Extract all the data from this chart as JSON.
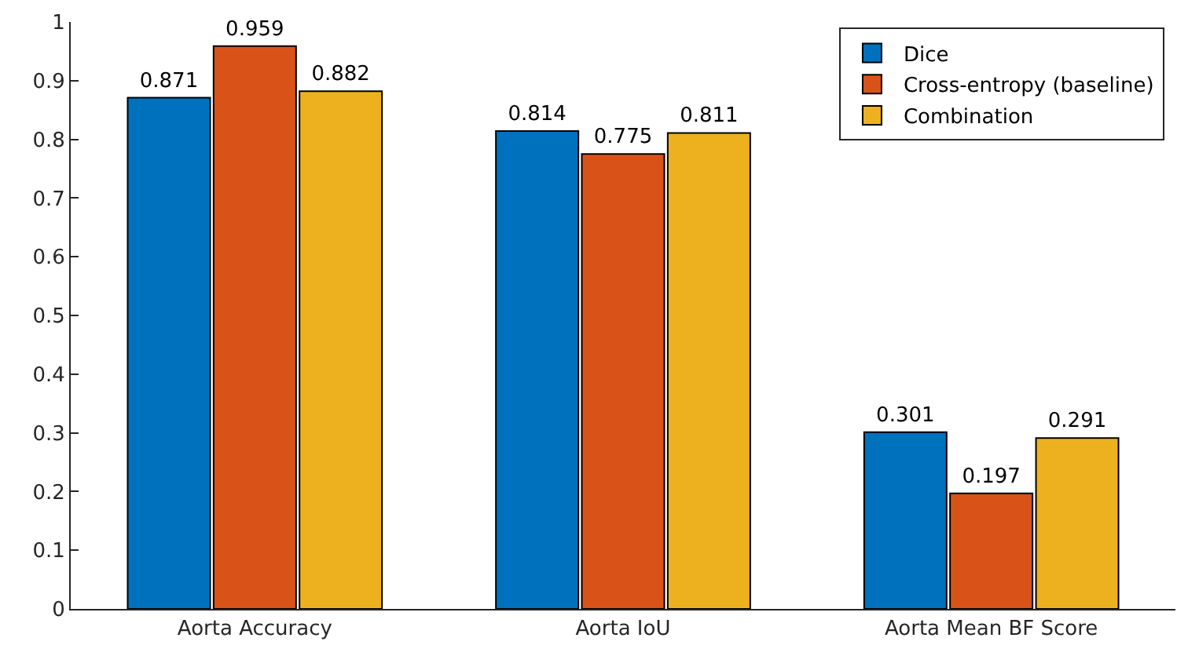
{
  "chart_data": {
    "type": "bar",
    "categories": [
      "Aorta Accuracy",
      "Aorta IoU",
      "Aorta Mean BF Score"
    ],
    "series": [
      {
        "name": "Dice",
        "color": "#0072bd",
        "values": [
          0.871,
          0.814,
          0.301
        ]
      },
      {
        "name": "Cross-entropy (baseline)",
        "color": "#d95319",
        "values": [
          0.959,
          0.775,
          0.197
        ]
      },
      {
        "name": "Combination",
        "color": "#edb120",
        "values": [
          0.882,
          0.811,
          0.291
        ]
      }
    ],
    "ylim": [
      0,
      1
    ],
    "yticks": [
      0,
      0.1,
      0.2,
      0.3,
      0.4,
      0.5,
      0.6,
      0.7,
      0.8,
      0.9,
      1
    ],
    "data_labels": true,
    "legend": "top right"
  }
}
